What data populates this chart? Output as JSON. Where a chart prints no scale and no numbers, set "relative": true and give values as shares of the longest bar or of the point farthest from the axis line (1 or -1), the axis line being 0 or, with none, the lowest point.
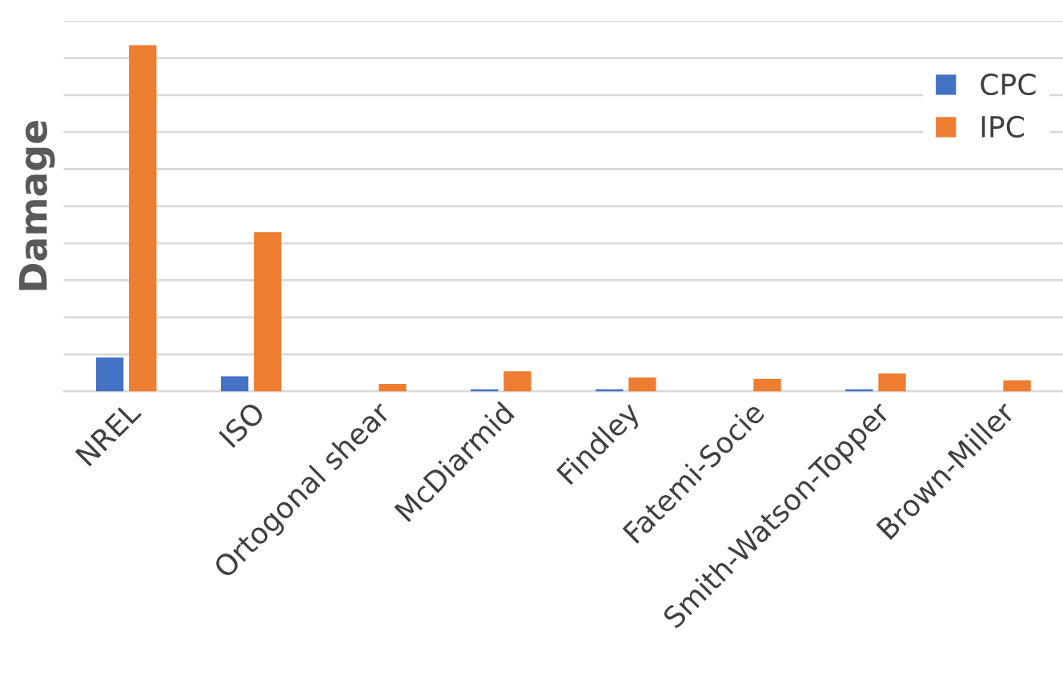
{
  "chart_data": {
    "type": "bar",
    "ylabel": "Damage",
    "relative": true,
    "grid": "y",
    "legend": "top right",
    "categories": [
      "NREL",
      "ISO",
      "Ortogonal shear",
      "McDiarmid",
      "Findley",
      "Fatemi-Socie",
      "Smith-Watson-Topper",
      "Brown-Miller"
    ],
    "series": [
      {
        "name": "CPC",
        "color": "#4472c4",
        "values": [
          0.098,
          0.044,
          0,
          0.006,
          0.006,
          0,
          0.006,
          0
        ]
      },
      {
        "name": "IPC",
        "color": "#ed7d31",
        "values": [
          1,
          0.46,
          0.022,
          0.058,
          0.04,
          0.036,
          0.052,
          0.032
        ]
      }
    ]
  }
}
